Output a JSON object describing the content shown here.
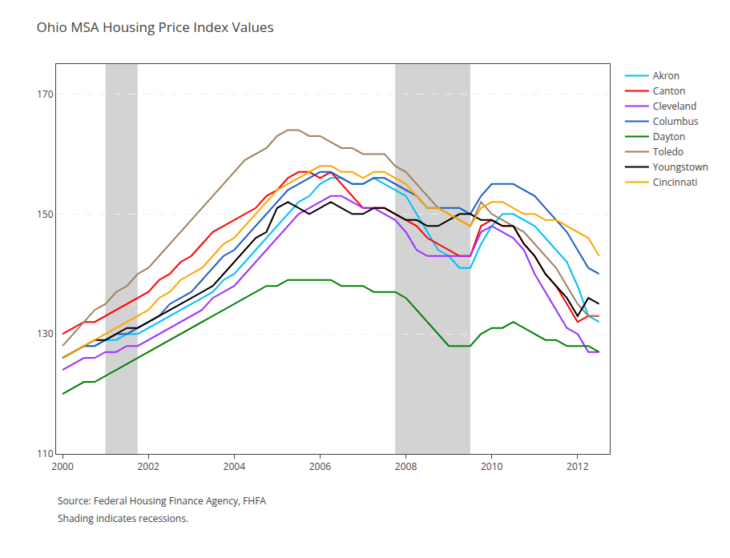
{
  "chart_data": {
    "type": "line",
    "title": "Ohio MSA Housing Price Index Values",
    "annotations": [
      "Source: Federal Housing Finance Agency, FHFA",
      "Shading indicates recessions."
    ],
    "x": [
      2000.0,
      2000.25,
      2000.5,
      2000.75,
      2001.0,
      2001.25,
      2001.5,
      2001.75,
      2002.0,
      2002.25,
      2002.5,
      2002.75,
      2003.0,
      2003.25,
      2003.5,
      2003.75,
      2004.0,
      2004.25,
      2004.5,
      2004.75,
      2005.0,
      2005.25,
      2005.5,
      2005.75,
      2006.0,
      2006.25,
      2006.5,
      2006.75,
      2007.0,
      2007.25,
      2007.5,
      2007.75,
      2008.0,
      2008.25,
      2008.5,
      2008.75,
      2009.0,
      2009.25,
      2009.5,
      2009.75,
      2010.0,
      2010.25,
      2010.5,
      2010.75,
      2011.0,
      2011.25,
      2011.5,
      2011.75,
      2012.0,
      2012.25,
      2012.5
    ],
    "series": [
      {
        "name": "Akron",
        "color": "#00bfff",
        "values": [
          126,
          127,
          128,
          128,
          129,
          129,
          130,
          130,
          131,
          132,
          133,
          134,
          135,
          136,
          137,
          139,
          140,
          142,
          144,
          146,
          148,
          150,
          152,
          153,
          155,
          156,
          156,
          155,
          155,
          156,
          155,
          154,
          153,
          150,
          147,
          144,
          143,
          141,
          141,
          145,
          148,
          150,
          150,
          149,
          148,
          146,
          144,
          142,
          138,
          133,
          132
        ]
      },
      {
        "name": "Canton",
        "color": "#ff0000",
        "values": [
          130,
          131,
          132,
          132,
          133,
          134,
          135,
          136,
          137,
          139,
          140,
          142,
          143,
          145,
          147,
          148,
          149,
          150,
          151,
          153,
          154,
          156,
          157,
          157,
          156,
          157,
          155,
          153,
          151,
          151,
          151,
          150,
          149,
          148,
          146,
          145,
          144,
          143,
          143,
          148,
          149,
          148,
          148,
          145,
          143,
          140,
          138,
          135,
          132,
          133,
          133
        ]
      },
      {
        "name": "Cleveland",
        "color": "#9b30ff",
        "values": [
          124,
          125,
          126,
          126,
          127,
          127,
          128,
          128,
          129,
          130,
          131,
          132,
          133,
          134,
          136,
          137,
          138,
          140,
          142,
          144,
          146,
          148,
          150,
          151,
          152,
          153,
          153,
          152,
          151,
          151,
          150,
          149,
          147,
          144,
          143,
          143,
          143,
          143,
          143,
          147,
          148,
          147,
          146,
          144,
          140,
          137,
          134,
          131,
          130,
          127,
          127
        ]
      },
      {
        "name": "Columbus",
        "color": "#1f5ec4",
        "values": [
          126,
          127,
          128,
          128,
          129,
          130,
          130,
          131,
          132,
          133,
          135,
          136,
          137,
          139,
          141,
          143,
          144,
          146,
          148,
          150,
          152,
          154,
          155,
          156,
          157,
          157,
          156,
          155,
          155,
          156,
          156,
          155,
          154,
          153,
          151,
          151,
          151,
          151,
          150,
          153,
          155,
          155,
          155,
          154,
          153,
          151,
          149,
          147,
          144,
          141,
          140
        ]
      },
      {
        "name": "Dayton",
        "color": "#008000",
        "values": [
          120,
          121,
          122,
          122,
          123,
          124,
          125,
          126,
          127,
          128,
          129,
          130,
          131,
          132,
          133,
          134,
          135,
          136,
          137,
          138,
          138,
          139,
          139,
          139,
          139,
          139,
          138,
          138,
          138,
          137,
          137,
          137,
          136,
          134,
          132,
          130,
          128,
          128,
          128,
          130,
          131,
          131,
          132,
          131,
          130,
          129,
          129,
          128,
          128,
          128,
          127
        ]
      },
      {
        "name": "Toledo",
        "color": "#a08060",
        "values": [
          128,
          130,
          132,
          134,
          135,
          137,
          138,
          140,
          141,
          143,
          145,
          147,
          149,
          151,
          153,
          155,
          157,
          159,
          160,
          161,
          163,
          164,
          164,
          163,
          163,
          162,
          161,
          161,
          160,
          160,
          160,
          158,
          157,
          155,
          153,
          151,
          150,
          149,
          148,
          152,
          150,
          149,
          148,
          147,
          145,
          143,
          141,
          138,
          135,
          133,
          133
        ]
      },
      {
        "name": "Youngstown",
        "color": "#000000",
        "values": [
          126,
          127,
          128,
          129,
          129,
          130,
          131,
          131,
          132,
          133,
          134,
          135,
          136,
          137,
          138,
          140,
          142,
          144,
          146,
          147,
          151,
          152,
          151,
          150,
          151,
          152,
          151,
          150,
          150,
          151,
          151,
          150,
          149,
          149,
          148,
          148,
          149,
          150,
          150,
          149,
          149,
          148,
          148,
          145,
          143,
          140,
          138,
          136,
          133,
          136,
          135
        ]
      },
      {
        "name": "Cincinnati",
        "color": "#ffa500",
        "values": [
          126,
          127,
          128,
          129,
          130,
          131,
          132,
          133,
          134,
          136,
          137,
          139,
          140,
          141,
          143,
          145,
          146,
          148,
          150,
          152,
          154,
          155,
          156,
          157,
          158,
          158,
          157,
          157,
          156,
          157,
          157,
          156,
          155,
          153,
          151,
          151,
          150,
          149,
          148,
          151,
          152,
          152,
          151,
          150,
          150,
          149,
          149,
          148,
          147,
          146,
          143
        ]
      }
    ],
    "xlim": [
      1999.85,
      2012.75
    ],
    "xticks": [
      2000,
      2002,
      2004,
      2006,
      2008,
      2010,
      2012
    ],
    "ylim": [
      110,
      175
    ],
    "yticks": [
      110,
      130,
      150,
      170
    ],
    "grid": "y",
    "line_style": "solid",
    "legend": "right",
    "shaded_ranges": [
      [
        2001.0,
        2001.75
      ],
      [
        2007.75,
        2009.5
      ]
    ],
    "shading_color": "#d3d3d3"
  }
}
